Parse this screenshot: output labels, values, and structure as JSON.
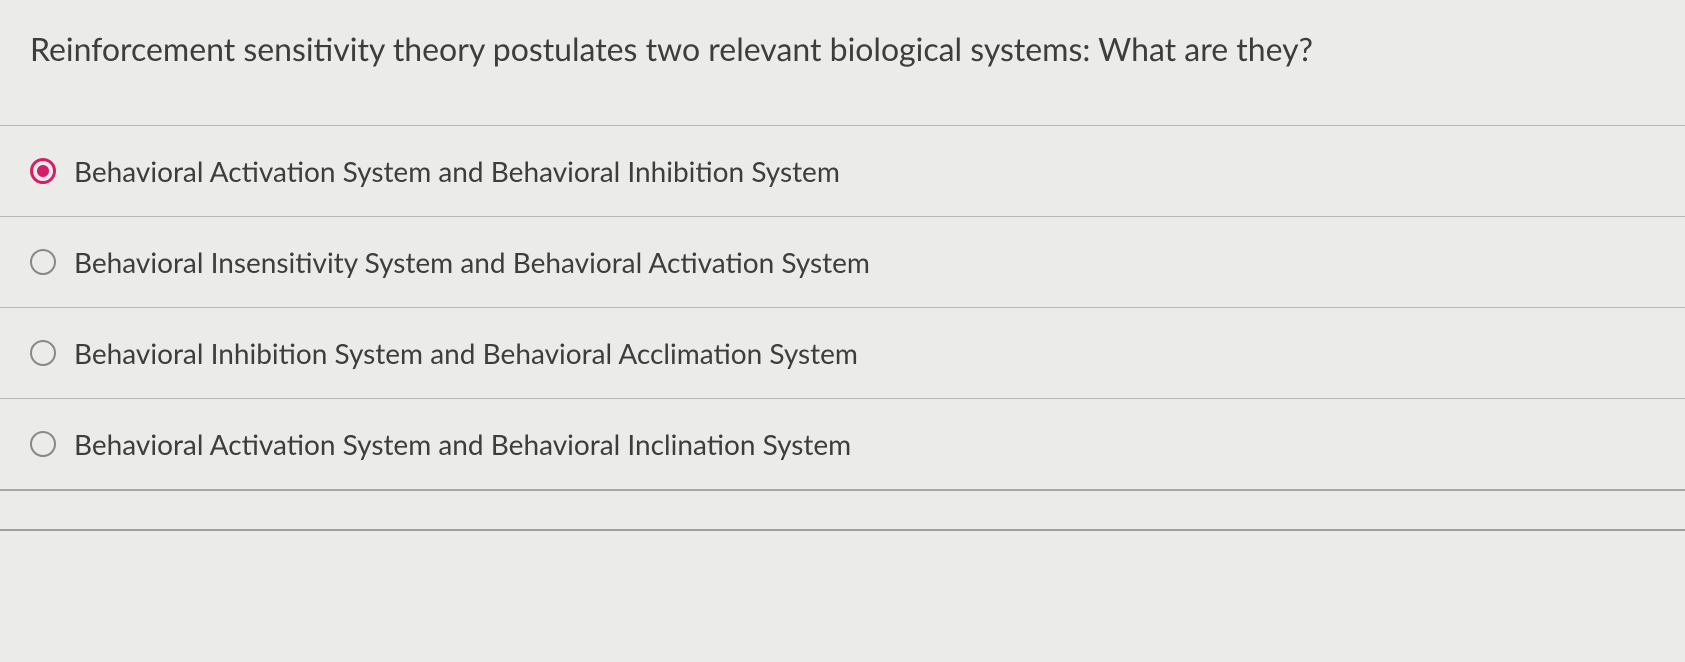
{
  "question": {
    "text": "Reinforcement sensitivity theory postulates two relevant biological systems: What are they?"
  },
  "options": [
    {
      "label": "Behavioral Activation System and Behavioral Inhibition System",
      "selected": true
    },
    {
      "label": "Behavioral Insensitivity System and Behavioral Activation System",
      "selected": false
    },
    {
      "label": "Behavioral Inhibition System and Behavioral Acclimation System",
      "selected": false
    },
    {
      "label": "Behavioral Activation System and Behavioral Inclination System",
      "selected": false
    }
  ],
  "colors": {
    "background": "#ebebe9",
    "text": "#3d3d3d",
    "divider": "#b8b8b6",
    "radio_border": "#888886",
    "radio_selected": "#d41e6a"
  },
  "typography": {
    "question_fontsize": 32,
    "option_fontsize": 28,
    "font_family": "Segoe UI"
  }
}
